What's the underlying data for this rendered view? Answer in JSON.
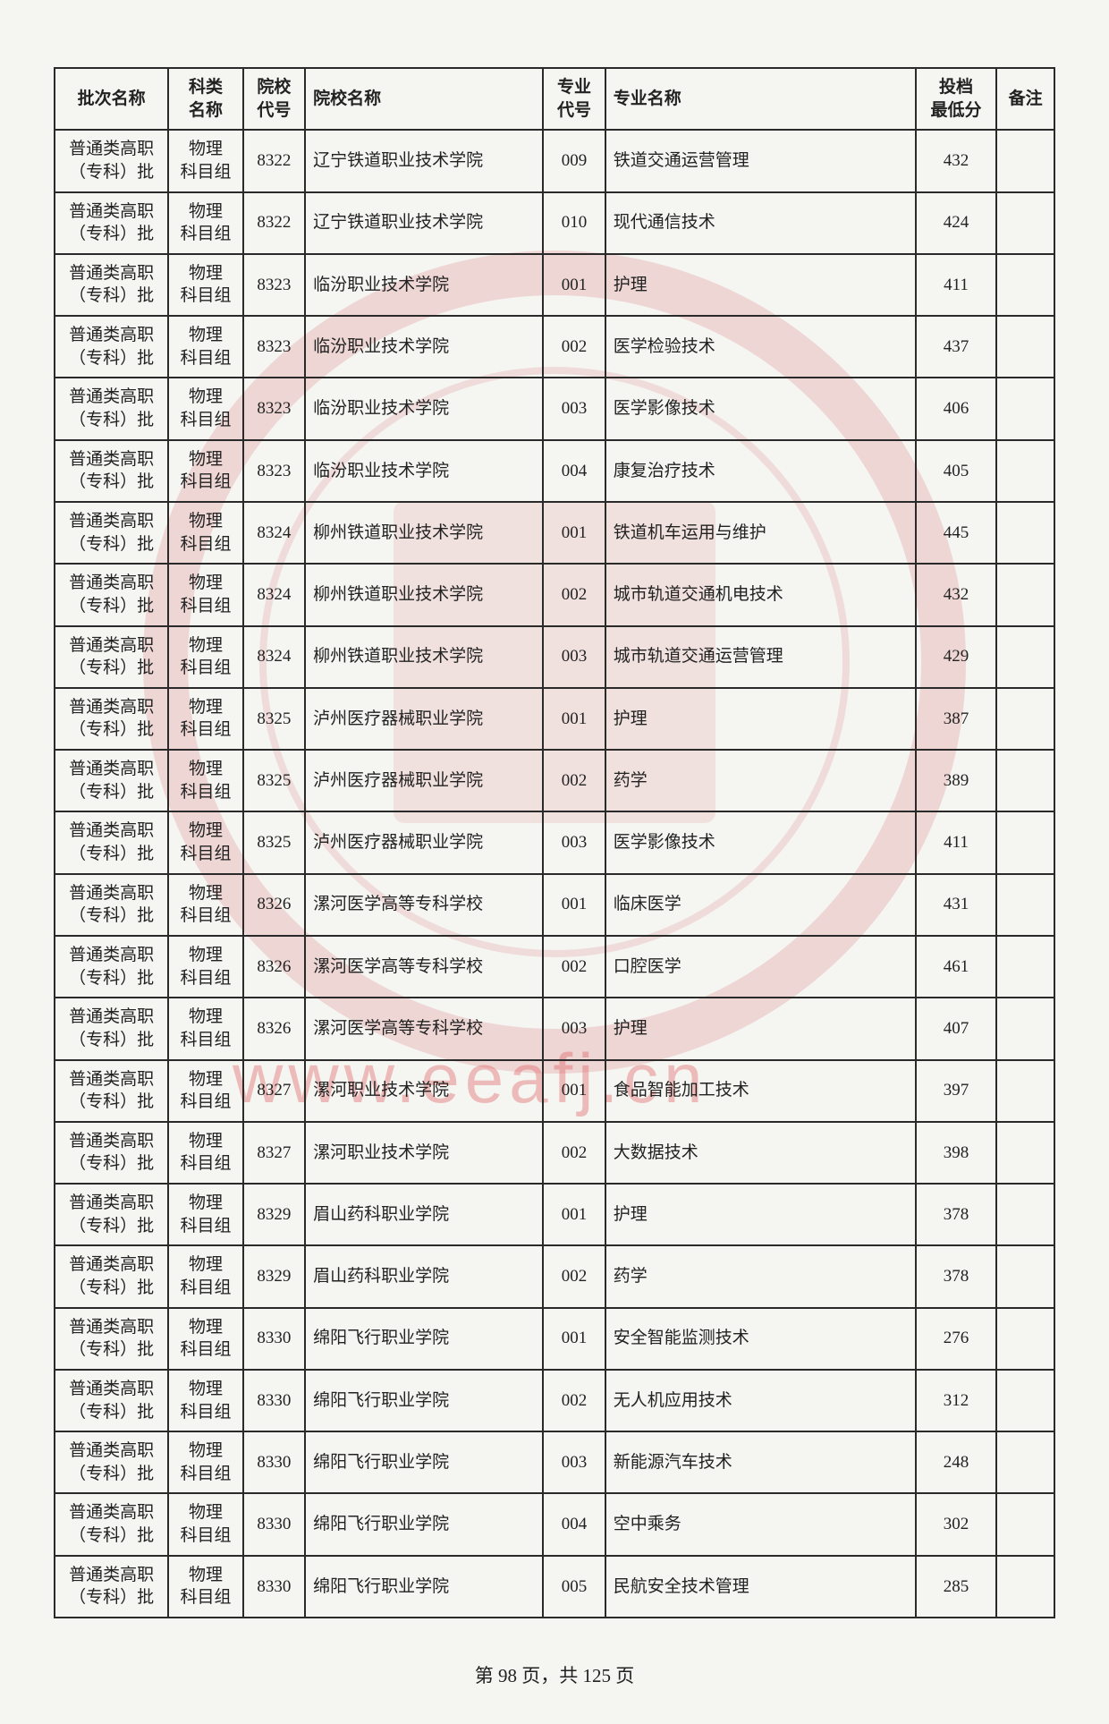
{
  "watermark_url": "www.eeafj.cn",
  "table": {
    "headers": {
      "batch": "批次名称",
      "subject": "科类\n名称",
      "school_code": "院校\n代号",
      "school_name": "院校名称",
      "major_code": "专业\n代号",
      "major_name": "专业名称",
      "score": "投档\n最低分",
      "note": "备注"
    },
    "header_fontsize": 19,
    "cell_fontsize": 19,
    "border_color": "#2a2a2a",
    "text_color": "#222222",
    "rows": [
      {
        "batch": "普通类高职\n（专科）批",
        "subject": "物理\n科目组",
        "school_code": "8322",
        "school_name": "辽宁铁道职业技术学院",
        "major_code": "009",
        "major_name": "铁道交通运营管理",
        "score": "432",
        "note": ""
      },
      {
        "batch": "普通类高职\n（专科）批",
        "subject": "物理\n科目组",
        "school_code": "8322",
        "school_name": "辽宁铁道职业技术学院",
        "major_code": "010",
        "major_name": "现代通信技术",
        "score": "424",
        "note": ""
      },
      {
        "batch": "普通类高职\n（专科）批",
        "subject": "物理\n科目组",
        "school_code": "8323",
        "school_name": "临汾职业技术学院",
        "major_code": "001",
        "major_name": "护理",
        "score": "411",
        "note": ""
      },
      {
        "batch": "普通类高职\n（专科）批",
        "subject": "物理\n科目组",
        "school_code": "8323",
        "school_name": "临汾职业技术学院",
        "major_code": "002",
        "major_name": "医学检验技术",
        "score": "437",
        "note": ""
      },
      {
        "batch": "普通类高职\n（专科）批",
        "subject": "物理\n科目组",
        "school_code": "8323",
        "school_name": "临汾职业技术学院",
        "major_code": "003",
        "major_name": "医学影像技术",
        "score": "406",
        "note": ""
      },
      {
        "batch": "普通类高职\n（专科）批",
        "subject": "物理\n科目组",
        "school_code": "8323",
        "school_name": "临汾职业技术学院",
        "major_code": "004",
        "major_name": "康复治疗技术",
        "score": "405",
        "note": ""
      },
      {
        "batch": "普通类高职\n（专科）批",
        "subject": "物理\n科目组",
        "school_code": "8324",
        "school_name": "柳州铁道职业技术学院",
        "major_code": "001",
        "major_name": "铁道机车运用与维护",
        "score": "445",
        "note": ""
      },
      {
        "batch": "普通类高职\n（专科）批",
        "subject": "物理\n科目组",
        "school_code": "8324",
        "school_name": "柳州铁道职业技术学院",
        "major_code": "002",
        "major_name": "城市轨道交通机电技术",
        "score": "432",
        "note": ""
      },
      {
        "batch": "普通类高职\n（专科）批",
        "subject": "物理\n科目组",
        "school_code": "8324",
        "school_name": "柳州铁道职业技术学院",
        "major_code": "003",
        "major_name": "城市轨道交通运营管理",
        "score": "429",
        "note": ""
      },
      {
        "batch": "普通类高职\n（专科）批",
        "subject": "物理\n科目组",
        "school_code": "8325",
        "school_name": "泸州医疗器械职业学院",
        "major_code": "001",
        "major_name": "护理",
        "score": "387",
        "note": ""
      },
      {
        "batch": "普通类高职\n（专科）批",
        "subject": "物理\n科目组",
        "school_code": "8325",
        "school_name": "泸州医疗器械职业学院",
        "major_code": "002",
        "major_name": "药学",
        "score": "389",
        "note": ""
      },
      {
        "batch": "普通类高职\n（专科）批",
        "subject": "物理\n科目组",
        "school_code": "8325",
        "school_name": "泸州医疗器械职业学院",
        "major_code": "003",
        "major_name": "医学影像技术",
        "score": "411",
        "note": ""
      },
      {
        "batch": "普通类高职\n（专科）批",
        "subject": "物理\n科目组",
        "school_code": "8326",
        "school_name": "漯河医学高等专科学校",
        "major_code": "001",
        "major_name": "临床医学",
        "score": "431",
        "note": ""
      },
      {
        "batch": "普通类高职\n（专科）批",
        "subject": "物理\n科目组",
        "school_code": "8326",
        "school_name": "漯河医学高等专科学校",
        "major_code": "002",
        "major_name": "口腔医学",
        "score": "461",
        "note": ""
      },
      {
        "batch": "普通类高职\n（专科）批",
        "subject": "物理\n科目组",
        "school_code": "8326",
        "school_name": "漯河医学高等专科学校",
        "major_code": "003",
        "major_name": "护理",
        "score": "407",
        "note": ""
      },
      {
        "batch": "普通类高职\n（专科）批",
        "subject": "物理\n科目组",
        "school_code": "8327",
        "school_name": "漯河职业技术学院",
        "major_code": "001",
        "major_name": "食品智能加工技术",
        "score": "397",
        "note": ""
      },
      {
        "batch": "普通类高职\n（专科）批",
        "subject": "物理\n科目组",
        "school_code": "8327",
        "school_name": "漯河职业技术学院",
        "major_code": "002",
        "major_name": "大数据技术",
        "score": "398",
        "note": ""
      },
      {
        "batch": "普通类高职\n（专科）批",
        "subject": "物理\n科目组",
        "school_code": "8329",
        "school_name": "眉山药科职业学院",
        "major_code": "001",
        "major_name": "护理",
        "score": "378",
        "note": ""
      },
      {
        "batch": "普通类高职\n（专科）批",
        "subject": "物理\n科目组",
        "school_code": "8329",
        "school_name": "眉山药科职业学院",
        "major_code": "002",
        "major_name": "药学",
        "score": "378",
        "note": ""
      },
      {
        "batch": "普通类高职\n（专科）批",
        "subject": "物理\n科目组",
        "school_code": "8330",
        "school_name": "绵阳飞行职业学院",
        "major_code": "001",
        "major_name": "安全智能监测技术",
        "score": "276",
        "note": ""
      },
      {
        "batch": "普通类高职\n（专科）批",
        "subject": "物理\n科目组",
        "school_code": "8330",
        "school_name": "绵阳飞行职业学院",
        "major_code": "002",
        "major_name": "无人机应用技术",
        "score": "312",
        "note": ""
      },
      {
        "batch": "普通类高职\n（专科）批",
        "subject": "物理\n科目组",
        "school_code": "8330",
        "school_name": "绵阳飞行职业学院",
        "major_code": "003",
        "major_name": "新能源汽车技术",
        "score": "248",
        "note": ""
      },
      {
        "batch": "普通类高职\n（专科）批",
        "subject": "物理\n科目组",
        "school_code": "8330",
        "school_name": "绵阳飞行职业学院",
        "major_code": "004",
        "major_name": "空中乘务",
        "score": "302",
        "note": ""
      },
      {
        "batch": "普通类高职\n（专科）批",
        "subject": "物理\n科目组",
        "school_code": "8330",
        "school_name": "绵阳飞行职业学院",
        "major_code": "005",
        "major_name": "民航安全技术管理",
        "score": "285",
        "note": ""
      }
    ]
  },
  "pager": {
    "prefix": "第 ",
    "current": "98",
    "middle": " 页，共 ",
    "total": "125",
    "suffix": " 页"
  },
  "colors": {
    "page_bg": "#f5f5f2",
    "seal_tint": "rgba(210,80,80,0.18)",
    "watermark_text": "rgba(220,80,80,0.35)"
  }
}
